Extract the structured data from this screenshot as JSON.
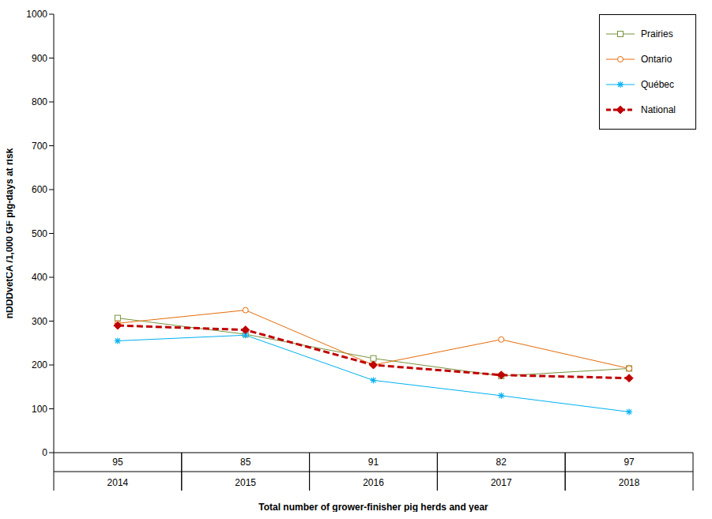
{
  "chart_data": {
    "type": "line",
    "x_label": "Total number of grower-finisher pig herds and year",
    "y_label": "nDDDvetCA /1,000 GF pig-days at risk",
    "categories": [
      "2014",
      "2015",
      "2016",
      "2017",
      "2018"
    ],
    "herds": [
      95,
      85,
      91,
      82,
      97
    ],
    "series": [
      {
        "name": "Prairies",
        "color": "#77933C",
        "marker": "square",
        "line_style": "solid",
        "values": [
          307,
          270,
          215,
          175,
          192
        ]
      },
      {
        "name": "Ontario",
        "color": "#E46C0A",
        "marker": "circle",
        "line_style": "solid",
        "values": [
          295,
          325,
          200,
          258,
          192
        ]
      },
      {
        "name": "Québec",
        "color": "#00B0F0",
        "marker": "star",
        "line_style": "solid",
        "values": [
          255,
          268,
          165,
          130,
          93
        ]
      },
      {
        "name": "National",
        "color": "#C00000",
        "marker": "diamond",
        "line_style": "dashed",
        "values": [
          290,
          280,
          200,
          177,
          170
        ]
      }
    ],
    "ylim": [
      0,
      1000
    ],
    "yticks": [
      0,
      100,
      200,
      300,
      400,
      500,
      600,
      700,
      800,
      900,
      1000
    ],
    "grid": false,
    "legend": "top-right"
  }
}
